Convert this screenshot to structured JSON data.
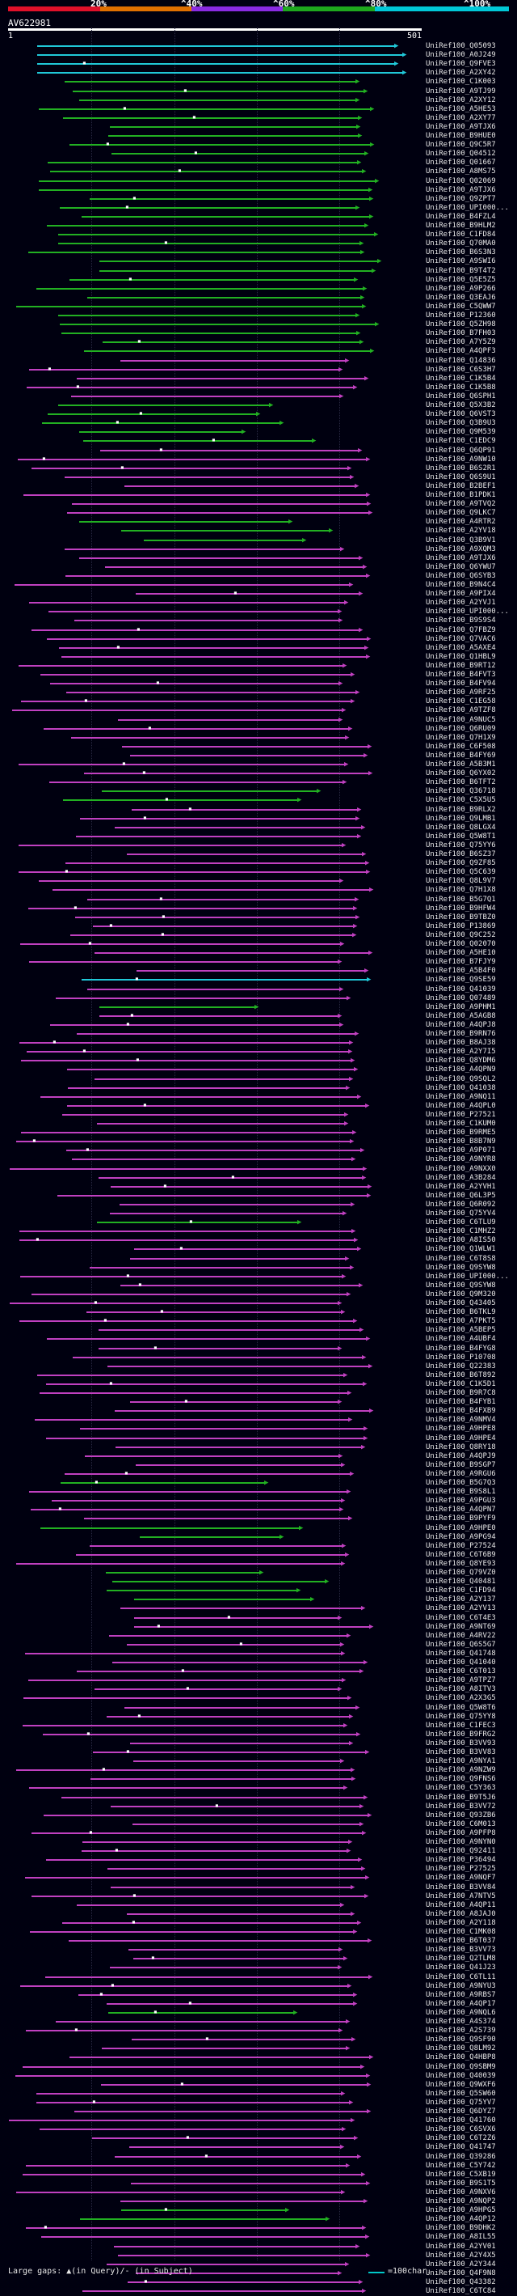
{
  "scale": {
    "ticks": [
      "20%",
      "^40%",
      "^60%",
      "^80%",
      "^100%"
    ],
    "colors": [
      "#e0102a",
      "#e07000",
      "#8a2be2",
      "#1ea81e",
      "#00c8d8"
    ]
  },
  "query": {
    "name": "AV622981",
    "start": "1",
    "end": "501"
  },
  "colors": {
    "magenta": "#c040c0",
    "green": "#22b022",
    "cyan": "#20c8d8"
  },
  "footer": {
    "gaps_text": "Large gaps: ▲(in Query)/- (in Subject)",
    "legend_text": "=100char."
  },
  "hits": [
    {
      "label": "UniRef100_Q05093",
      "color": "cyan"
    },
    {
      "label": "UniRef100_A0J249",
      "color": "cyan"
    },
    {
      "label": "UniRef100_Q9FVE3",
      "color": "cyan"
    },
    {
      "label": "UniRef100_A2XY42",
      "color": "cyan"
    },
    {
      "label": "UniRef100_C1K003",
      "color": "green"
    },
    {
      "label": "UniRef100_A9TJ99",
      "color": "green"
    },
    {
      "label": "UniRef100_A2XY12",
      "color": "green"
    },
    {
      "label": "UniRef100_A5HE53",
      "color": "green"
    },
    {
      "label": "UniRef100_A2XY77",
      "color": "green"
    },
    {
      "label": "UniRef100_A9TJX6",
      "color": "green"
    },
    {
      "label": "UniRef100_B9HUE0",
      "color": "green"
    },
    {
      "label": "UniRef100_Q9C5R7",
      "color": "green"
    },
    {
      "label": "UniRef100_Q04512",
      "color": "green"
    },
    {
      "label": "UniRef100_Q01667",
      "color": "green"
    },
    {
      "label": "UniRef100_A8MS75",
      "color": "green"
    },
    {
      "label": "UniRef100_Q02069",
      "color": "green"
    },
    {
      "label": "UniRef100_A9TJX6",
      "color": "green"
    },
    {
      "label": "UniRef100_Q9ZPT7",
      "color": "green"
    },
    {
      "label": "UniRef100_UPI000...",
      "color": "green"
    },
    {
      "label": "UniRef100_B4FZL4",
      "color": "green"
    },
    {
      "label": "UniRef100_B9HLM2",
      "color": "green"
    },
    {
      "label": "UniRef100_C1FD84",
      "color": "green"
    },
    {
      "label": "UniRef100_Q70MA0",
      "color": "green"
    },
    {
      "label": "UniRef100_B6S3N3",
      "color": "green"
    },
    {
      "label": "UniRef100_A9SWI6",
      "color": "green"
    },
    {
      "label": "UniRef100_B9T4T2",
      "color": "green"
    },
    {
      "label": "UniRef100_Q5E5Z5",
      "color": "green"
    },
    {
      "label": "UniRef100_A9P266",
      "color": "green"
    },
    {
      "label": "UniRef100_Q3EAJ6",
      "color": "green"
    },
    {
      "label": "UniRef100_C5QWW7",
      "color": "green"
    },
    {
      "label": "UniRef100_P12360",
      "color": "green"
    },
    {
      "label": "UniRef100_Q5ZH98",
      "color": "green"
    },
    {
      "label": "UniRef100_B7FH03",
      "color": "green"
    },
    {
      "label": "UniRef100_A7Y5Z9",
      "color": "green"
    },
    {
      "label": "UniRef100_A4QPF3",
      "color": "green"
    },
    {
      "label": "UniRef100_Q14836",
      "color": "magenta"
    },
    {
      "label": "UniRef100_C6S3H7",
      "color": "magenta"
    },
    {
      "label": "UniRef100_C1K5B4",
      "color": "magenta"
    },
    {
      "label": "UniRef100_C1K5B8",
      "color": "magenta"
    },
    {
      "label": "UniRef100_Q6SPH1",
      "color": "magenta"
    },
    {
      "label": "UniRef100_Q5X3B2",
      "color": "green"
    },
    {
      "label": "UniRef100_Q6VST3",
      "color": "green"
    },
    {
      "label": "UniRef100_Q3B9U3",
      "color": "green"
    },
    {
      "label": "UniRef100_Q9M539",
      "color": "green"
    },
    {
      "label": "UniRef100_C1EDC9",
      "color": "green"
    },
    {
      "label": "UniRef100_Q6QP91",
      "color": "magenta"
    },
    {
      "label": "UniRef100_A9NW10",
      "color": "magenta"
    },
    {
      "label": "UniRef100_B6S2R1",
      "color": "magenta"
    },
    {
      "label": "UniRef100_Q6S9U1",
      "color": "magenta"
    },
    {
      "label": "UniRef100_B2BEF1",
      "color": "magenta"
    },
    {
      "label": "UniRef100_B1PDK1",
      "color": "magenta"
    },
    {
      "label": "UniRef100_A9TVQ2",
      "color": "magenta"
    },
    {
      "label": "UniRef100_Q9LKC7",
      "color": "magenta"
    },
    {
      "label": "UniRef100_A4RTR2",
      "color": "green"
    },
    {
      "label": "UniRef100_A2YV18",
      "color": "green"
    },
    {
      "label": "UniRef100_Q3B9V1",
      "color": "green"
    },
    {
      "label": "UniRef100_A9XQM3",
      "color": "magenta"
    },
    {
      "label": "UniRef100_A9TJX6",
      "color": "magenta"
    },
    {
      "label": "UniRef100_Q6YWU7",
      "color": "magenta"
    },
    {
      "label": "UniRef100_Q6SYB3",
      "color": "magenta"
    },
    {
      "label": "UniRef100_B9N4C4",
      "color": "magenta"
    },
    {
      "label": "UniRef100_A9PIX4",
      "color": "magenta"
    },
    {
      "label": "UniRef100_A2YVJ1",
      "color": "magenta"
    },
    {
      "label": "UniRef100_UPI000...",
      "color": "magenta"
    },
    {
      "label": "UniRef100_B9S9S4",
      "color": "magenta"
    },
    {
      "label": "UniRef100_Q7FBZ9",
      "color": "magenta"
    },
    {
      "label": "UniRef100_Q7VAC6",
      "color": "magenta"
    },
    {
      "label": "UniRef100_A5AXE4",
      "color": "magenta"
    },
    {
      "label": "UniRef100_Q1HBL9",
      "color": "magenta"
    },
    {
      "label": "UniRef100_B9RT12",
      "color": "magenta"
    },
    {
      "label": "UniRef100_B4FVT3",
      "color": "magenta"
    },
    {
      "label": "UniRef100_B4FV94",
      "color": "magenta"
    },
    {
      "label": "UniRef100_A9RF25",
      "color": "magenta"
    },
    {
      "label": "UniRef100_C1EG58",
      "color": "magenta"
    },
    {
      "label": "UniRef100_A9TZF8",
      "color": "magenta"
    },
    {
      "label": "UniRef100_A9NUC5",
      "color": "magenta"
    },
    {
      "label": "UniRef100_Q6RU09",
      "color": "magenta"
    },
    {
      "label": "UniRef100_Q7H1X9",
      "color": "magenta"
    },
    {
      "label": "UniRef100_C6F508",
      "color": "magenta"
    },
    {
      "label": "UniRef100_B4FY69",
      "color": "magenta"
    },
    {
      "label": "UniRef100_A5B3M1",
      "color": "magenta"
    },
    {
      "label": "UniRef100_Q6YX02",
      "color": "magenta"
    },
    {
      "label": "UniRef100_B6TFT2",
      "color": "magenta"
    },
    {
      "label": "UniRef100_Q36718",
      "color": "green"
    },
    {
      "label": "UniRef100_C5X5U5",
      "color": "green"
    },
    {
      "label": "UniRef100_B9RLX2",
      "color": "magenta"
    },
    {
      "label": "UniRef100_Q9LMB1",
      "color": "magenta"
    },
    {
      "label": "UniRef100_Q8LGX4",
      "color": "magenta"
    },
    {
      "label": "UniRef100_Q5W8T1",
      "color": "magenta"
    },
    {
      "label": "UniRef100_Q75YY6",
      "color": "magenta"
    },
    {
      "label": "UniRef100_B6SZ37",
      "color": "magenta"
    },
    {
      "label": "UniRef100_Q9ZF85",
      "color": "magenta"
    },
    {
      "label": "UniRef100_Q5C639",
      "color": "magenta"
    },
    {
      "label": "UniRef100_Q8L9V7",
      "color": "magenta"
    },
    {
      "label": "UniRef100_Q7H1X8",
      "color": "magenta"
    },
    {
      "label": "UniRef100_B5G7Q1",
      "color": "magenta"
    },
    {
      "label": "UniRef100_B9HFW4",
      "color": "magenta"
    },
    {
      "label": "UniRef100_B9TBZ0",
      "color": "magenta"
    },
    {
      "label": "UniRef100_P13869",
      "color": "magenta"
    },
    {
      "label": "UniRef100_Q9C252",
      "color": "magenta"
    },
    {
      "label": "UniRef100_Q02070",
      "color": "magenta"
    },
    {
      "label": "UniRef100_A5HE10",
      "color": "magenta"
    },
    {
      "label": "UniRef100_B7FJY9",
      "color": "magenta"
    },
    {
      "label": "UniRef100_A5B4F0",
      "color": "magenta"
    },
    {
      "label": "UniRef100_Q9SE59",
      "color": "cyan"
    },
    {
      "label": "UniRef100_Q41039",
      "color": "magenta"
    },
    {
      "label": "UniRef100_Q07489",
      "color": "magenta"
    },
    {
      "label": "UniRef100_A9PHM1",
      "color": "green"
    },
    {
      "label": "UniRef100_A5AGB8",
      "color": "magenta"
    },
    {
      "label": "UniRef100_A4QPJ8",
      "color": "magenta"
    },
    {
      "label": "UniRef100_B9RN76",
      "color": "magenta"
    },
    {
      "label": "UniRef100_B8AJ38",
      "color": "magenta"
    },
    {
      "label": "UniRef100_A2Y7I5",
      "color": "magenta"
    },
    {
      "label": "UniRef100_Q8YDM6",
      "color": "magenta"
    },
    {
      "label": "UniRef100_A4QPN9",
      "color": "magenta"
    },
    {
      "label": "UniRef100_Q9SQL2",
      "color": "magenta"
    },
    {
      "label": "UniRef100_Q41038",
      "color": "magenta"
    },
    {
      "label": "UniRef100_A9NQ11",
      "color": "magenta"
    },
    {
      "label": "UniRef100_A4QPL0",
      "color": "magenta"
    },
    {
      "label": "UniRef100_P27521",
      "color": "magenta"
    },
    {
      "label": "UniRef100_C1KUM0",
      "color": "magenta"
    },
    {
      "label": "UniRef100_B9RME5",
      "color": "magenta"
    },
    {
      "label": "UniRef100_B8B7N9",
      "color": "magenta"
    },
    {
      "label": "UniRef100_A9P071",
      "color": "magenta"
    },
    {
      "label": "UniRef100_A9NYR8",
      "color": "magenta"
    },
    {
      "label": "UniRef100_A9NXX0",
      "color": "magenta"
    },
    {
      "label": "UniRef100_A3B284",
      "color": "magenta"
    },
    {
      "label": "UniRef100_A2YVH1",
      "color": "magenta"
    },
    {
      "label": "UniRef100_Q6L3P5",
      "color": "magenta"
    },
    {
      "label": "UniRef100_Q6R092",
      "color": "magenta"
    },
    {
      "label": "UniRef100_Q75YV4",
      "color": "magenta"
    },
    {
      "label": "UniRef100_C6TLU9",
      "color": "green"
    },
    {
      "label": "UniRef100_C1MHZ2",
      "color": "magenta"
    },
    {
      "label": "UniRef100_A8IS50",
      "color": "magenta"
    },
    {
      "label": "UniRef100_Q1WLW1",
      "color": "magenta"
    },
    {
      "label": "UniRef100_C6T8S8",
      "color": "magenta"
    },
    {
      "label": "UniRef100_Q9SYW8",
      "color": "magenta"
    },
    {
      "label": "UniRef100_UPI000...",
      "color": "magenta"
    },
    {
      "label": "UniRef100_Q9SYW8",
      "color": "magenta"
    },
    {
      "label": "UniRef100_Q9M320",
      "color": "magenta"
    },
    {
      "label": "UniRef100_Q43405",
      "color": "magenta"
    },
    {
      "label": "UniRef100_B6TKL9",
      "color": "magenta"
    },
    {
      "label": "UniRef100_A7PKT5",
      "color": "magenta"
    },
    {
      "label": "UniRef100_A5BEP5",
      "color": "magenta"
    },
    {
      "label": "UniRef100_A4UBF4",
      "color": "magenta"
    },
    {
      "label": "UniRef100_B4FYG8",
      "color": "magenta"
    },
    {
      "label": "UniRef100_P10708",
      "color": "magenta"
    },
    {
      "label": "UniRef100_Q22383",
      "color": "magenta"
    },
    {
      "label": "UniRef100_B6T892",
      "color": "magenta"
    },
    {
      "label": "UniRef100_C1K5D1",
      "color": "magenta"
    },
    {
      "label": "UniRef100_B9R7C8",
      "color": "magenta"
    },
    {
      "label": "UniRef100_B4FYB1",
      "color": "magenta"
    },
    {
      "label": "UniRef100_B4FXB9",
      "color": "magenta"
    },
    {
      "label": "UniRef100_A9NMV4",
      "color": "magenta"
    },
    {
      "label": "UniRef100_A9HPE8",
      "color": "magenta"
    },
    {
      "label": "UniRef100_A9HPE4",
      "color": "magenta"
    },
    {
      "label": "UniRef100_Q8RY18",
      "color": "magenta"
    },
    {
      "label": "UniRef100_A4QPJ9",
      "color": "magenta"
    },
    {
      "label": "UniRef100_B9SGP7",
      "color": "magenta"
    },
    {
      "label": "UniRef100_A9RGU6",
      "color": "magenta"
    },
    {
      "label": "UniRef100_B5G7Q3",
      "color": "green"
    },
    {
      "label": "UniRef100_B9S8L1",
      "color": "magenta"
    },
    {
      "label": "UniRef100_A9PGU3",
      "color": "magenta"
    },
    {
      "label": "UniRef100_A4QPN7",
      "color": "magenta"
    },
    {
      "label": "UniRef100_B9PYF9",
      "color": "magenta"
    },
    {
      "label": "UniRef100_A9HPE0",
      "color": "green"
    },
    {
      "label": "UniRef100_A9PG94",
      "color": "green"
    },
    {
      "label": "UniRef100_P27524",
      "color": "magenta"
    },
    {
      "label": "UniRef100_C6T6B9",
      "color": "magenta"
    },
    {
      "label": "UniRef100_Q8YE93",
      "color": "magenta"
    },
    {
      "label": "UniRef100_Q79VZ0",
      "color": "green"
    },
    {
      "label": "UniRef100_Q40481",
      "color": "green"
    },
    {
      "label": "UniRef100_C1FD94",
      "color": "green"
    },
    {
      "label": "UniRef100_A2Y137",
      "color": "green"
    },
    {
      "label": "UniRef100_A2YV13",
      "color": "magenta"
    },
    {
      "label": "UniRef100_C6T4E3",
      "color": "magenta"
    },
    {
      "label": "UniRef100_A9NT69",
      "color": "magenta"
    },
    {
      "label": "UniRef100_A4RV22",
      "color": "magenta"
    },
    {
      "label": "UniRef100_Q6S5G7",
      "color": "magenta"
    },
    {
      "label": "UniRef100_Q41748",
      "color": "magenta"
    },
    {
      "label": "UniRef100_Q41040",
      "color": "magenta"
    },
    {
      "label": "UniRef100_C6T013",
      "color": "magenta"
    },
    {
      "label": "UniRef100_A9TPZ7",
      "color": "magenta"
    },
    {
      "label": "UniRef100_A8ITV3",
      "color": "magenta"
    },
    {
      "label": "UniRef100_A2X3G5",
      "color": "magenta"
    },
    {
      "label": "UniRef100_Q5W8T6",
      "color": "magenta"
    },
    {
      "label": "UniRef100_Q75YY8",
      "color": "magenta"
    },
    {
      "label": "UniRef100_C1FEC3",
      "color": "magenta"
    },
    {
      "label": "UniRef100_B9FRG2",
      "color": "magenta"
    },
    {
      "label": "UniRef100_B3VV93",
      "color": "magenta"
    },
    {
      "label": "UniRef100_B3VV83",
      "color": "magenta"
    },
    {
      "label": "UniRef100_A9NYA1",
      "color": "magenta"
    },
    {
      "label": "UniRef100_A9NZW9",
      "color": "magenta"
    },
    {
      "label": "UniRef100_Q9FNS6",
      "color": "magenta"
    },
    {
      "label": "UniRef100_C5Y363",
      "color": "magenta"
    },
    {
      "label": "UniRef100_B9T5J6",
      "color": "magenta"
    },
    {
      "label": "UniRef100_B3VV72",
      "color": "magenta"
    },
    {
      "label": "UniRef100_Q93ZB6",
      "color": "magenta"
    },
    {
      "label": "UniRef100_C6M013",
      "color": "magenta"
    },
    {
      "label": "UniRef100_A9PFP8",
      "color": "magenta"
    },
    {
      "label": "UniRef100_A9NYN0",
      "color": "magenta"
    },
    {
      "label": "UniRef100_Q92411",
      "color": "magenta"
    },
    {
      "label": "UniRef100_P36494",
      "color": "magenta"
    },
    {
      "label": "UniRef100_P27525",
      "color": "magenta"
    },
    {
      "label": "UniRef100_A9NQF7",
      "color": "magenta"
    },
    {
      "label": "UniRef100_B3VV84",
      "color": "magenta"
    },
    {
      "label": "UniRef100_A7NTV5",
      "color": "magenta"
    },
    {
      "label": "UniRef100_A4QP11",
      "color": "magenta"
    },
    {
      "label": "UniRef100_A8JAJ0",
      "color": "magenta"
    },
    {
      "label": "UniRef100_A2Y118",
      "color": "magenta"
    },
    {
      "label": "UniRef100_C1MK08",
      "color": "magenta"
    },
    {
      "label": "UniRef100_B6T037",
      "color": "magenta"
    },
    {
      "label": "UniRef100_B3VV73",
      "color": "magenta"
    },
    {
      "label": "UniRef100_Q2TLM8",
      "color": "magenta"
    },
    {
      "label": "UniRef100_Q41J23",
      "color": "magenta"
    },
    {
      "label": "UniRef100_C6TL11",
      "color": "magenta"
    },
    {
      "label": "UniRef100_A9NYU3",
      "color": "magenta"
    },
    {
      "label": "UniRef100_A9RBS7",
      "color": "magenta"
    },
    {
      "label": "UniRef100_A4QP17",
      "color": "magenta"
    },
    {
      "label": "UniRef100_A9NQL6",
      "color": "green"
    },
    {
      "label": "UniRef100_A4S374",
      "color": "magenta"
    },
    {
      "label": "UniRef100_A2S739",
      "color": "magenta"
    },
    {
      "label": "UniRef100_Q9SF90",
      "color": "magenta"
    },
    {
      "label": "UniRef100_Q8LM92",
      "color": "magenta"
    },
    {
      "label": "UniRef100_Q4HBP8",
      "color": "magenta"
    },
    {
      "label": "UniRef100_Q9SBM9",
      "color": "magenta"
    },
    {
      "label": "UniRef100_Q40039",
      "color": "magenta"
    },
    {
      "label": "UniRef100_Q9WXF6",
      "color": "magenta"
    },
    {
      "label": "UniRef100_Q5SW60",
      "color": "magenta"
    },
    {
      "label": "UniRef100_Q75YV7",
      "color": "magenta"
    },
    {
      "label": "UniRef100_Q6DYZ7",
      "color": "magenta"
    },
    {
      "label": "UniRef100_Q41760",
      "color": "magenta"
    },
    {
      "label": "UniRef100_C6SVX6",
      "color": "magenta"
    },
    {
      "label": "UniRef100_C6T2Z6",
      "color": "magenta"
    },
    {
      "label": "UniRef100_Q41747",
      "color": "magenta"
    },
    {
      "label": "UniRef100_Q39286",
      "color": "magenta"
    },
    {
      "label": "UniRef100_C5Y742",
      "color": "magenta"
    },
    {
      "label": "UniRef100_C5XB19",
      "color": "magenta"
    },
    {
      "label": "UniRef100_B9S1T5",
      "color": "magenta"
    },
    {
      "label": "UniRef100_A9NXV6",
      "color": "magenta"
    },
    {
      "label": "UniRef100_A9NQP2",
      "color": "magenta"
    },
    {
      "label": "UniRef100_A9HPG5",
      "color": "green"
    },
    {
      "label": "UniRef100_A4QP12",
      "color": "green"
    },
    {
      "label": "UniRef100_B9DHK2",
      "color": "magenta"
    },
    {
      "label": "UniRef100_A8IL55",
      "color": "magenta"
    },
    {
      "label": "UniRef100_A2YV01",
      "color": "magenta"
    },
    {
      "label": "UniRef100_A2Y4X5",
      "color": "magenta"
    },
    {
      "label": "UniRef100_A2Y344",
      "color": "magenta"
    },
    {
      "label": "UniRef100_Q4F9N8",
      "color": "magenta"
    },
    {
      "label": "UniRef100_Q43382",
      "color": "magenta"
    },
    {
      "label": "UniRef100_C6TC84",
      "color": "magenta"
    }
  ]
}
